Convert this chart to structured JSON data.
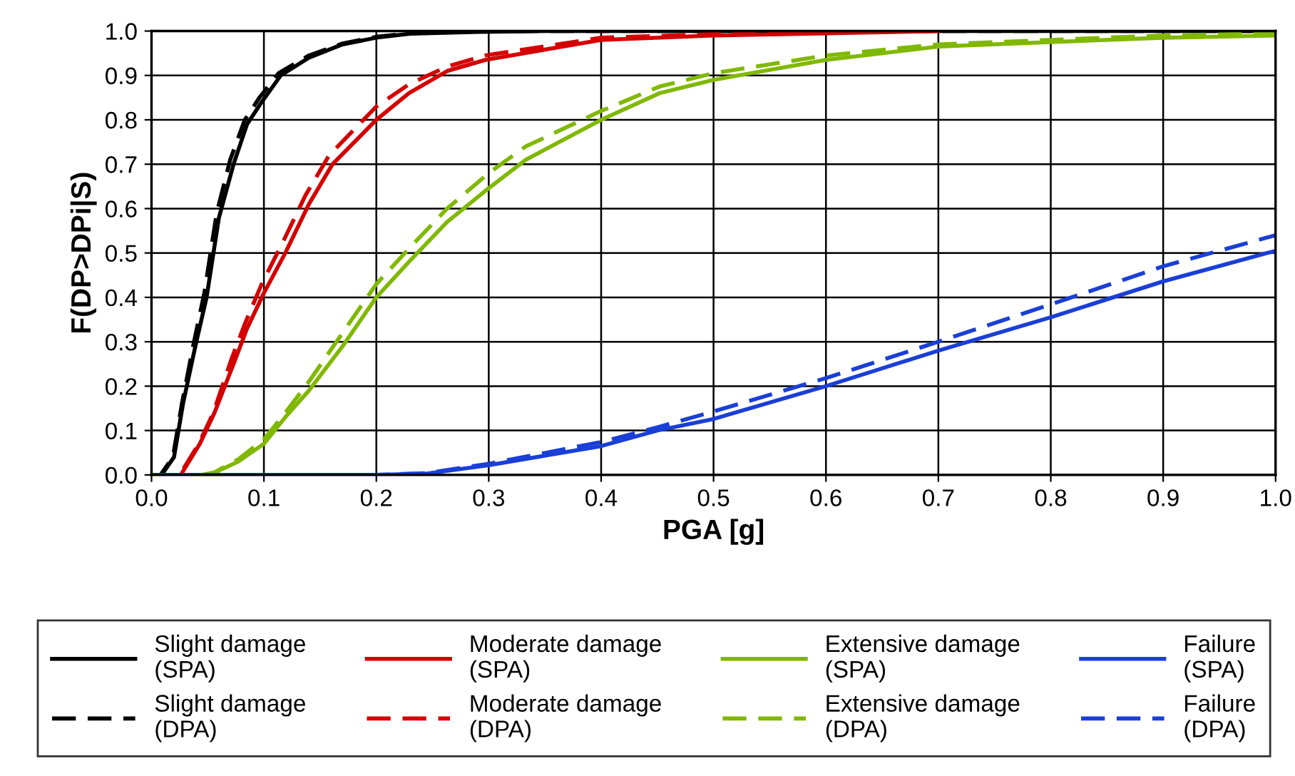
{
  "chart_data": {
    "type": "line",
    "xlabel": "PGA [g]",
    "ylabel": "F(DP>DPi|S)",
    "xlim": [
      0,
      1
    ],
    "ylim": [
      0,
      1
    ],
    "xticks": [
      {
        "value": 0,
        "label": "0.0"
      },
      0.1,
      0.2,
      0.3,
      0.4,
      0.5,
      0.6,
      0.7,
      0.8,
      0.9,
      {
        "value": 1,
        "label": "1.0"
      }
    ],
    "yticks": [
      {
        "value": 0,
        "label": "0.0"
      },
      0.1,
      0.2,
      0.3,
      0.4,
      0.5,
      0.6,
      0.7,
      0.8,
      0.9,
      {
        "value": 1,
        "label": "1.0"
      }
    ],
    "grid": true,
    "legend": "bottom",
    "marker": "none",
    "series": [
      {
        "name": "Slight damage\n(SPA)",
        "color": "#000000",
        "line_style": "solid",
        "x": [
          0,
          0.009,
          0.02,
          0.028,
          0.039,
          0.049,
          0.06,
          0.073,
          0.085,
          0.098,
          0.115,
          0.14,
          0.17,
          0.2,
          0.23,
          0.29,
          0.35,
          1.0
        ],
        "values": [
          0,
          0,
          0.04,
          0.16,
          0.29,
          0.4,
          0.58,
          0.7,
          0.79,
          0.84,
          0.9,
          0.94,
          0.97,
          0.985,
          0.994,
          0.998,
          1.0,
          1.0
        ]
      },
      {
        "name": "Slight damage\n(DPA)",
        "color": "#000000",
        "line_style": "dashed",
        "x": [
          0,
          0.008,
          0.019,
          0.027,
          0.037,
          0.047,
          0.058,
          0.07,
          0.083,
          0.096,
          0.113,
          0.14,
          0.17,
          0.2,
          0.23,
          0.29,
          0.35,
          1.0
        ],
        "values": [
          0,
          0,
          0.04,
          0.16,
          0.29,
          0.41,
          0.59,
          0.71,
          0.8,
          0.85,
          0.905,
          0.945,
          0.972,
          0.987,
          0.995,
          0.999,
          1.0,
          1.0
        ]
      },
      {
        "name": "Moderate damage\n(SPA)",
        "color": "#d40000",
        "line_style": "solid",
        "x": [
          0,
          0.026,
          0.043,
          0.056,
          0.073,
          0.085,
          0.1,
          0.119,
          0.14,
          0.161,
          0.2,
          0.229,
          0.263,
          0.297,
          0.4,
          0.5,
          0.6,
          0.7
        ],
        "values": [
          0,
          0,
          0.07,
          0.14,
          0.25,
          0.33,
          0.41,
          0.5,
          0.61,
          0.7,
          0.8,
          0.86,
          0.91,
          0.935,
          0.98,
          0.99,
          0.995,
          1.0
        ]
      },
      {
        "name": "Moderate damage\n(DPA)",
        "color": "#d40000",
        "line_style": "dashed",
        "x": [
          0,
          0.025,
          0.042,
          0.055,
          0.071,
          0.083,
          0.098,
          0.116,
          0.137,
          0.158,
          0.2,
          0.229,
          0.263,
          0.297,
          0.4,
          0.5,
          0.6,
          0.7
        ],
        "values": [
          0,
          0,
          0.07,
          0.14,
          0.26,
          0.34,
          0.43,
          0.52,
          0.63,
          0.72,
          0.83,
          0.88,
          0.92,
          0.945,
          0.985,
          0.993,
          0.997,
          1.0
        ]
      },
      {
        "name": "Extensive damage\n(SPA)",
        "color": "#80b800",
        "line_style": "solid",
        "x": [
          0.045,
          0.056,
          0.077,
          0.1,
          0.119,
          0.14,
          0.17,
          0.2,
          0.229,
          0.263,
          0.297,
          0.333,
          0.4,
          0.452,
          0.5,
          0.6,
          0.7,
          0.8,
          0.9,
          1.0
        ],
        "values": [
          0,
          0.005,
          0.03,
          0.07,
          0.13,
          0.19,
          0.29,
          0.4,
          0.48,
          0.57,
          0.64,
          0.71,
          0.8,
          0.86,
          0.89,
          0.935,
          0.965,
          0.975,
          0.985,
          0.99
        ]
      },
      {
        "name": "Extensive damage\n(DPA)",
        "color": "#80b800",
        "line_style": "dashed",
        "x": [
          0.045,
          0.056,
          0.077,
          0.1,
          0.119,
          0.14,
          0.17,
          0.2,
          0.229,
          0.263,
          0.3,
          0.333,
          0.4,
          0.452,
          0.5,
          0.6,
          0.7,
          0.8,
          0.9,
          1.0
        ],
        "values": [
          0,
          0.006,
          0.035,
          0.08,
          0.14,
          0.21,
          0.32,
          0.43,
          0.51,
          0.6,
          0.68,
          0.74,
          0.82,
          0.875,
          0.905,
          0.945,
          0.97,
          0.98,
          0.99,
          0.995
        ]
      },
      {
        "name": "Failure\n(SPA)",
        "color": "#1a3fd6",
        "line_style": "solid",
        "x": [
          0,
          0.2,
          0.245,
          0.3,
          0.4,
          0.45,
          0.5,
          0.6,
          0.7,
          0.8,
          0.9,
          1.0
        ],
        "values": [
          0,
          0,
          0.003,
          0.022,
          0.065,
          0.1,
          0.126,
          0.2,
          0.28,
          0.355,
          0.436,
          0.505
        ]
      },
      {
        "name": "Failure\n(DPA)",
        "color": "#1a3fd6",
        "line_style": "dashed",
        "x": [
          0,
          0.2,
          0.245,
          0.3,
          0.4,
          0.45,
          0.5,
          0.6,
          0.7,
          0.8,
          0.9,
          1.0
        ],
        "values": [
          0,
          0,
          0.004,
          0.025,
          0.074,
          0.107,
          0.143,
          0.218,
          0.3,
          0.384,
          0.47,
          0.54
        ]
      }
    ]
  }
}
